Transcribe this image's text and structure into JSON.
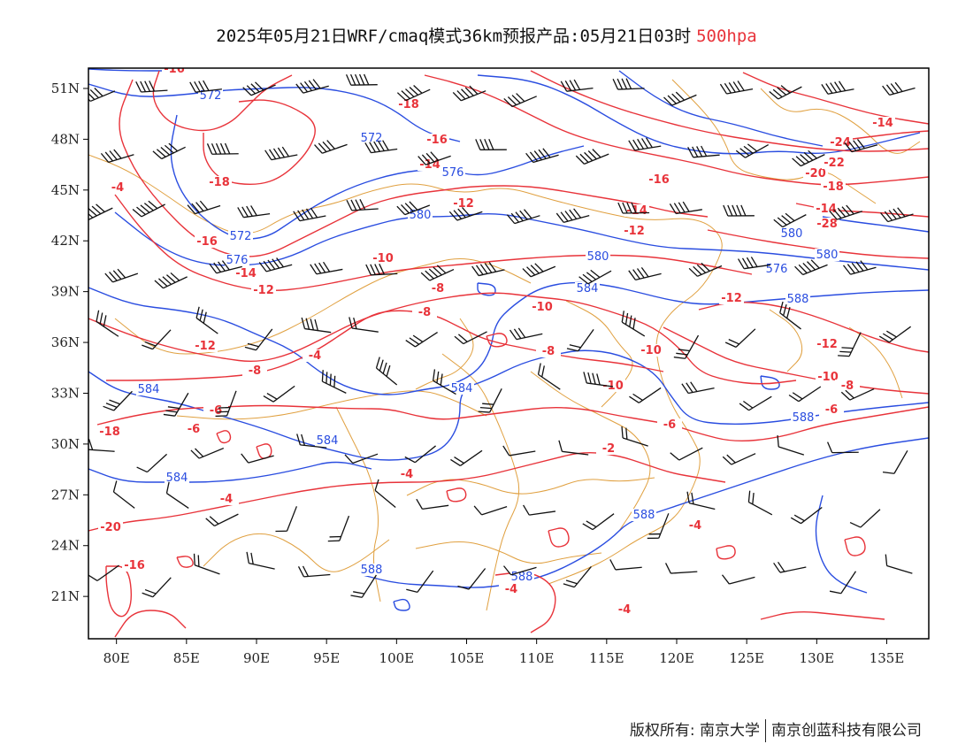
{
  "title": {
    "main": "2025年05月21日WRF/cmaq模式36km预报产品:05月21日03时",
    "level": "500hpa"
  },
  "map": {
    "lon_ticks": [
      "80E",
      "85E",
      "90E",
      "95E",
      "100E",
      "105E",
      "110E",
      "115E",
      "120E",
      "125E",
      "130E",
      "135E"
    ],
    "lat_ticks": [
      "51N",
      "48N",
      "45N",
      "42N",
      "39N",
      "36N",
      "33N",
      "30N",
      "27N",
      "24N",
      "21N"
    ],
    "lon_range": [
      78,
      138
    ],
    "lat_range": [
      18.5,
      52.2
    ],
    "colors": {
      "height": "#2a4de0",
      "temperature": "#e8333a",
      "boundaries": "#e0a040",
      "barbs": "#111111",
      "frame": "#000000"
    },
    "height_labels": [
      "572",
      "572",
      "572",
      "576",
      "576",
      "580",
      "580",
      "580",
      "584",
      "584",
      "584",
      "584",
      "584",
      "588",
      "588",
      "588",
      "588",
      "588",
      "580",
      "576"
    ],
    "temp_labels": [
      "-16",
      "-18",
      "-18",
      "-16",
      "-14",
      "-14",
      "-12",
      "-12",
      "-10",
      "-8",
      "-8",
      "-10",
      "-8",
      "-6",
      "-6",
      "-4",
      "-4",
      "-4",
      "-4",
      "-4",
      "-2",
      "-10",
      "-12",
      "-12",
      "-10",
      "-8",
      "-6",
      "-20",
      "-16",
      "-14",
      "-12",
      "-18",
      "-22",
      "-24",
      "-20",
      "-18",
      "-16",
      "-14",
      "-28",
      "-14",
      "-12",
      "-10",
      "-8",
      "-6",
      "-4",
      "-4",
      "-16"
    ]
  },
  "footer": {
    "left": "版权所有: 南京大学",
    "right": "南京创蓝科技有限公司"
  }
}
